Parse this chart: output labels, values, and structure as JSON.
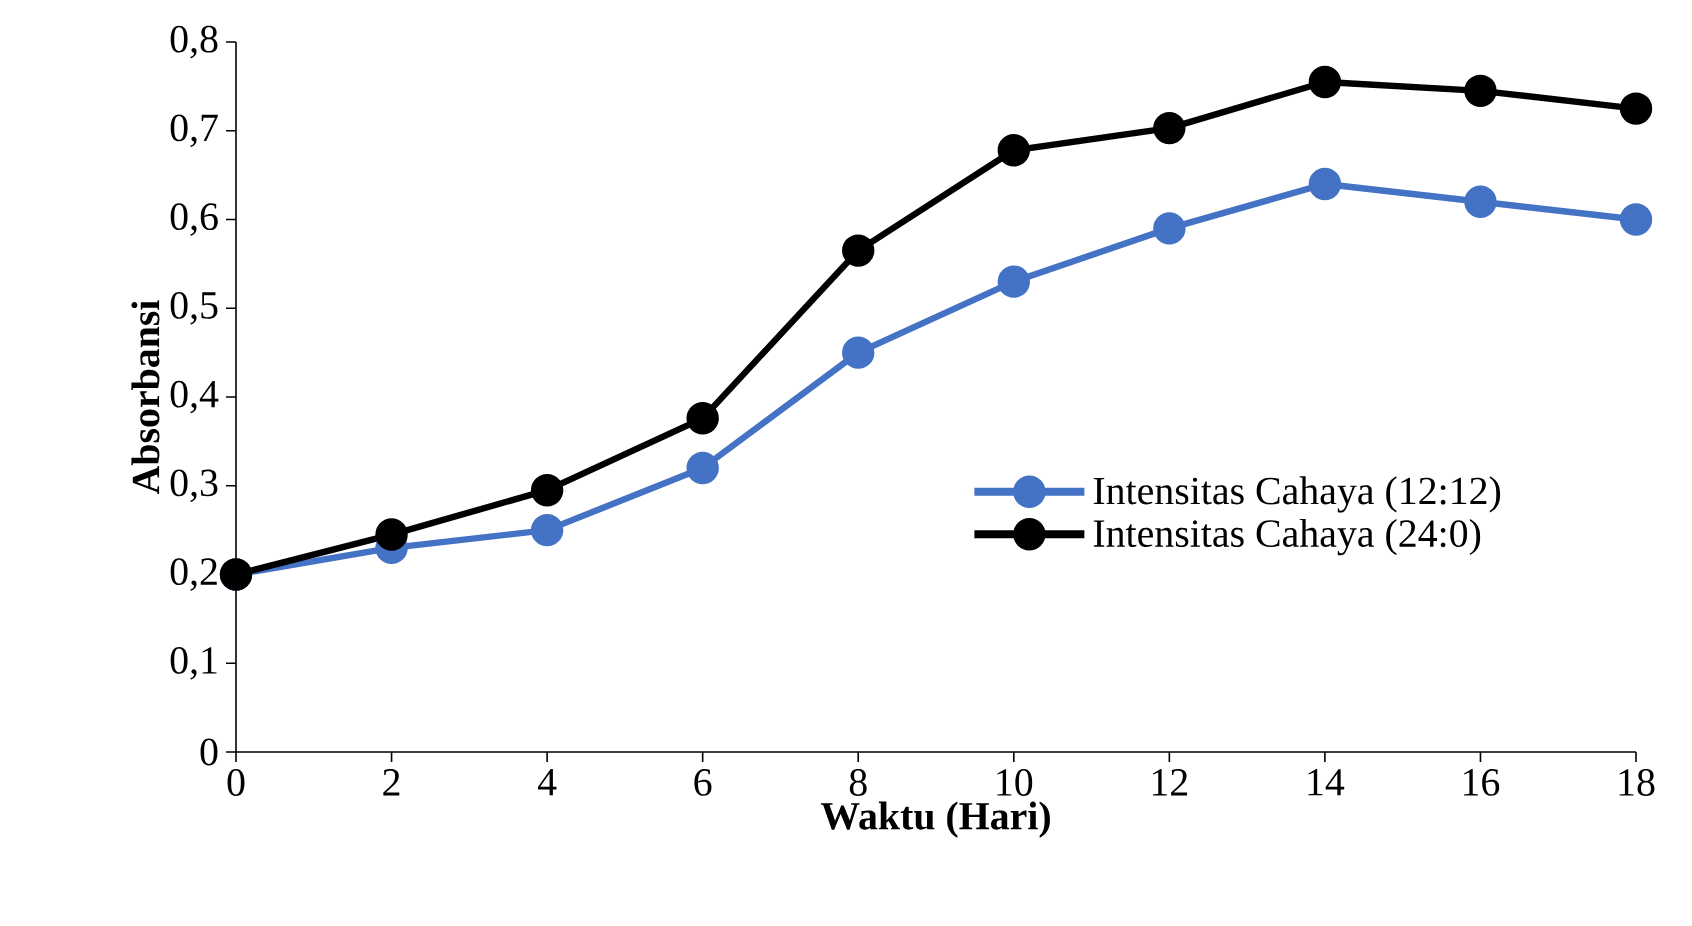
{
  "chart_data": {
    "type": "line",
    "xlabel": "Waktu (Hari)",
    "ylabel": "Absorbansi",
    "x": [
      0,
      2,
      4,
      6,
      8,
      10,
      12,
      14,
      16,
      18
    ],
    "series": [
      {
        "name": "Intensitas Cahaya (12:12)",
        "color": "#4472c4",
        "values": [
          0.2,
          0.23,
          0.25,
          0.32,
          0.45,
          0.53,
          0.59,
          0.64,
          0.62,
          0.6
        ]
      },
      {
        "name": "Intensitas Cahaya (24:0)",
        "color": "#000000",
        "values": [
          0.2,
          0.245,
          0.295,
          0.376,
          0.565,
          0.678,
          0.703,
          0.755,
          0.745,
          0.725
        ]
      }
    ],
    "xlim": [
      0,
      18
    ],
    "xticks": [
      0,
      2,
      4,
      6,
      8,
      10,
      12,
      14,
      16,
      18
    ],
    "ylim": [
      0,
      0.8
    ],
    "yticks": [
      0,
      {
        "value": 0.1,
        "label": "0,1"
      },
      {
        "value": 0.2,
        "label": "0,2"
      },
      {
        "value": 0.3,
        "label": "0,3"
      },
      {
        "value": 0.4,
        "label": "0,4"
      },
      {
        "value": 0.5,
        "label": "0,5"
      },
      {
        "value": 0.6,
        "label": "0,6"
      },
      {
        "value": 0.7,
        "label": "0,7"
      },
      {
        "value": 0.8,
        "label": "0,8"
      }
    ],
    "grid": false,
    "legend": "right",
    "marker": "circle",
    "line_style": "solid"
  }
}
